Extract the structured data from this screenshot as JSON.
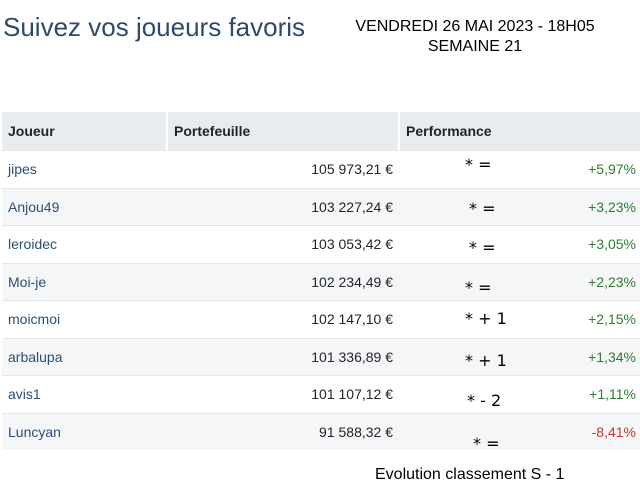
{
  "header": {
    "title": "Suivez vos joueurs favoris",
    "date_line": "VENDREDI 26 MAI 2023 - 18H05",
    "week_line": "SEMAINE 21"
  },
  "table": {
    "columns": [
      "Joueur",
      "Portefeuille",
      "Performance"
    ],
    "rows": [
      {
        "player": "jipes",
        "wallet": "105 973,21 €",
        "evolution": "*  =",
        "performance": "+5,97%",
        "trend": "up"
      },
      {
        "player": "Anjou49",
        "wallet": "103 227,24 €",
        "evolution": "* =",
        "performance": "+3,23%",
        "trend": "up"
      },
      {
        "player": "leroidec",
        "wallet": "103 053,42 €",
        "evolution": "* =",
        "performance": "+3,05%",
        "trend": "up"
      },
      {
        "player": "Moi-je",
        "wallet": "102 234,49 €",
        "evolution": "*  =",
        "performance": "+2,23%",
        "trend": "up"
      },
      {
        "player": "moicmoi",
        "wallet": "102 147,10 €",
        "evolution": "* + 1",
        "performance": "+2,15%",
        "trend": "up"
      },
      {
        "player": "arbalupa",
        "wallet": "101 336,89 €",
        "evolution": "* + 1",
        "performance": "+1,34%",
        "trend": "up"
      },
      {
        "player": "avis1",
        "wallet": "101 107,12 €",
        "evolution": "* - 2",
        "performance": "+1,11%",
        "trend": "up"
      },
      {
        "player": "Luncyan",
        "wallet": "91 588,32 €",
        "evolution": "* =",
        "performance": "-8,41%",
        "trend": "down"
      }
    ]
  },
  "footer": {
    "legend": "Evolution classement S  - 1"
  },
  "colors": {
    "title": "#2d4a6e",
    "positive": "#2e7d32",
    "negative": "#c0392b",
    "header_bg": "#e9ecef"
  }
}
